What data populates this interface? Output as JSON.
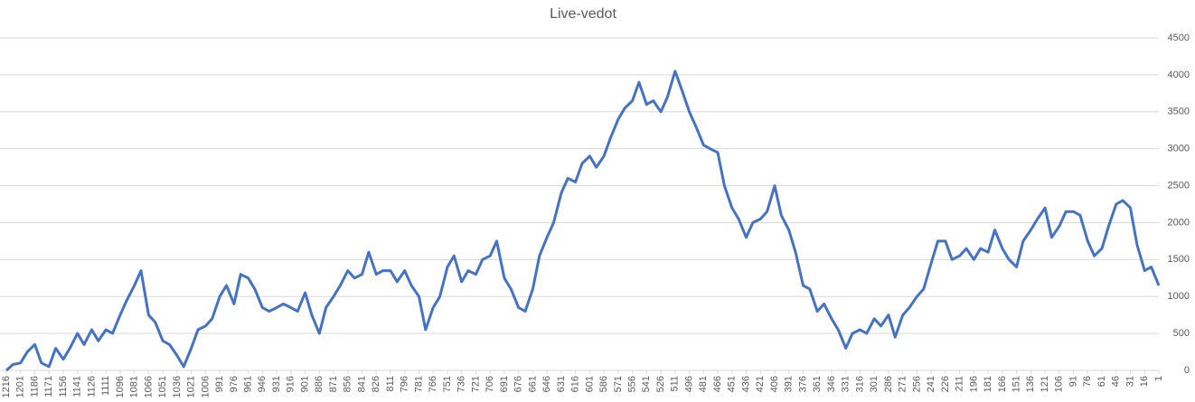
{
  "chart_data": {
    "type": "line",
    "title": "Live-vedot",
    "color": "#4472c4",
    "grid": true,
    "y_axis_side": "right",
    "x": [
      1216,
      1209,
      1201,
      1194,
      1186,
      1179,
      1171,
      1164,
      1156,
      1149,
      1141,
      1134,
      1126,
      1119,
      1111,
      1104,
      1096,
      1089,
      1081,
      1074,
      1066,
      1059,
      1051,
      1044,
      1036,
      1029,
      1021,
      1014,
      1006,
      999,
      991,
      984,
      976,
      969,
      961,
      954,
      946,
      939,
      931,
      924,
      916,
      909,
      901,
      894,
      886,
      879,
      871,
      864,
      856,
      849,
      841,
      834,
      826,
      819,
      811,
      804,
      796,
      789,
      781,
      774,
      766,
      759,
      751,
      744,
      736,
      729,
      721,
      714,
      706,
      699,
      691,
      684,
      676,
      669,
      661,
      654,
      646,
      639,
      631,
      624,
      616,
      609,
      601,
      594,
      586,
      579,
      571,
      564,
      556,
      549,
      541,
      534,
      526,
      519,
      511,
      504,
      496,
      489,
      481,
      474,
      466,
      459,
      451,
      444,
      436,
      429,
      421,
      414,
      406,
      399,
      391,
      384,
      376,
      369,
      361,
      354,
      346,
      339,
      331,
      324,
      316,
      309,
      301,
      294,
      286,
      279,
      271,
      264,
      256,
      249,
      241,
      234,
      226,
      219,
      211,
      204,
      196,
      189,
      181,
      174,
      166,
      159,
      151,
      144,
      136,
      129,
      121,
      114,
      106,
      99,
      91,
      84,
      76,
      69,
      61,
      54,
      46,
      39,
      31,
      24,
      16,
      9,
      1
    ],
    "values": [
      0,
      80,
      100,
      250,
      350,
      100,
      50,
      300,
      150,
      300,
      500,
      350,
      550,
      400,
      550,
      500,
      750,
      950,
      1150,
      1350,
      750,
      650,
      400,
      350,
      200,
      50,
      300,
      550,
      600,
      700,
      1000,
      1150,
      900,
      1300,
      1250,
      1100,
      850,
      800,
      850,
      900,
      850,
      800,
      1050,
      750,
      500,
      850,
      1000,
      1150,
      1350,
      1250,
      1300,
      1600,
      1300,
      1350,
      1350,
      1200,
      1350,
      1150,
      1000,
      550,
      850,
      1000,
      1400,
      1550,
      1200,
      1350,
      1300,
      1500,
      1550,
      1750,
      1250,
      1100,
      850,
      800,
      1100,
      1550,
      1800,
      2000,
      2400,
      2600,
      2550,
      2800,
      2900,
      2750,
      2900,
      3150,
      3400,
      3550,
      3650,
      3900,
      3600,
      3650,
      3500,
      3700,
      4050,
      3800,
      3500,
      3300,
      3050,
      3000,
      2950,
      2500,
      2200,
      2050,
      1800,
      2000,
      2050,
      2150,
      2500,
      2100,
      1900,
      1600,
      1150,
      1100,
      800,
      900,
      700,
      550,
      300,
      500,
      550,
      500,
      700,
      600,
      750,
      450,
      750,
      850,
      1000,
      1100,
      1450,
      1750,
      1750,
      1500,
      1550,
      1650,
      1500,
      1650,
      1600,
      1900,
      1650,
      1500,
      1400,
      1750,
      1900,
      2050,
      2200,
      1800,
      1950,
      2150,
      2150,
      2100,
      1750,
      1550,
      1650,
      1950,
      2250,
      2300,
      2200,
      1700,
      1350,
      1400,
      1150
    ],
    "xlim": [
      1216,
      1
    ],
    "xticks": [
      1216,
      1201,
      1186,
      1171,
      1156,
      1141,
      1126,
      1111,
      1096,
      1081,
      1066,
      1051,
      1036,
      1021,
      1006,
      991,
      976,
      961,
      946,
      931,
      916,
      901,
      886,
      871,
      856,
      841,
      826,
      811,
      796,
      781,
      766,
      751,
      736,
      721,
      706,
      691,
      676,
      661,
      646,
      631,
      616,
      601,
      586,
      571,
      556,
      541,
      526,
      511,
      496,
      481,
      466,
      451,
      436,
      421,
      406,
      391,
      376,
      361,
      346,
      331,
      316,
      301,
      286,
      271,
      256,
      241,
      226,
      211,
      196,
      181,
      166,
      151,
      136,
      121,
      106,
      91,
      76,
      61,
      46,
      31,
      16,
      1
    ],
    "ylim": [
      0,
      4500
    ],
    "yticks": [
      0,
      500,
      1000,
      1500,
      2000,
      2500,
      3000,
      3500,
      4000,
      4500
    ]
  }
}
